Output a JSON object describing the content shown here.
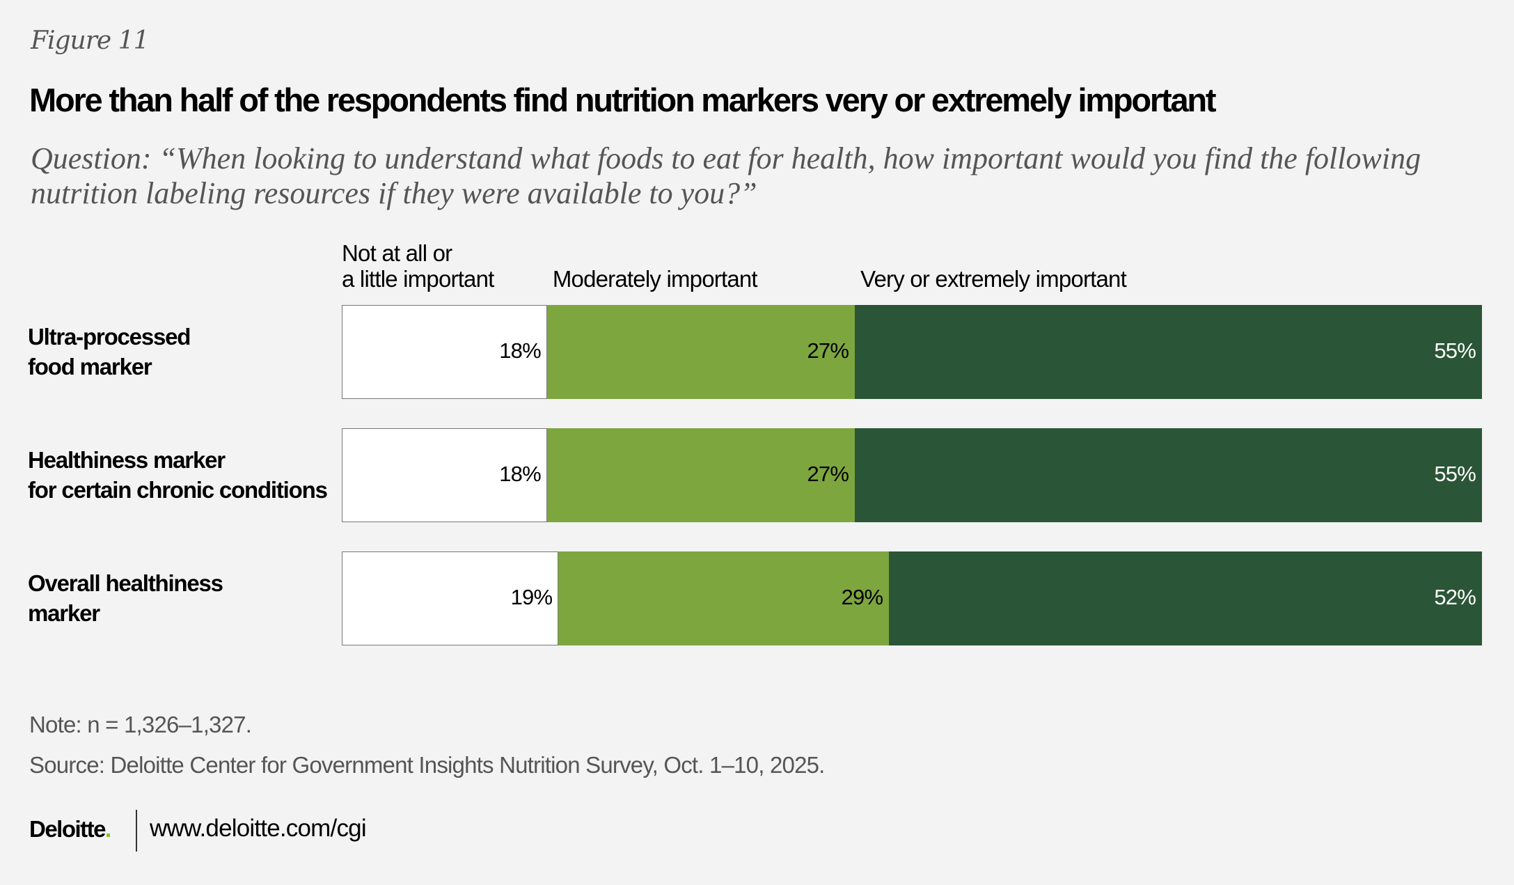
{
  "figure_label": "Figure 11",
  "title": "More than half of the respondents find nutrition markers very or extremely important",
  "subtitle_lines": [
    "Question: “When looking to understand what foods to eat for health, how important would you find the following",
    "nutrition labeling resources if they were available to you?”"
  ],
  "chart_data": {
    "type": "bar",
    "orientation": "horizontal",
    "stacked": true,
    "normalized_percent": true,
    "categories": [
      [
        "Ultra-processed",
        "food marker"
      ],
      [
        "Healthiness marker",
        "for certain chronic conditions"
      ],
      [
        "Overall healthiness",
        "marker"
      ]
    ],
    "series": [
      {
        "name": "Not at all or a little important",
        "name_lines": [
          "Not at all or",
          "a little important"
        ],
        "values": [
          18,
          18,
          19
        ],
        "labels": [
          "18%",
          "18%",
          "19%"
        ],
        "color": "#ffffff",
        "label_color": "#000000"
      },
      {
        "name": "Moderately important",
        "name_lines": [
          "",
          "Moderately important"
        ],
        "values": [
          27,
          27,
          29
        ],
        "labels": [
          "27%",
          "27%",
          "29%"
        ],
        "color": "#7ea63f",
        "label_color": "#000000"
      },
      {
        "name": "Very or extremely important",
        "name_lines": [
          "",
          "Very or extremely important"
        ],
        "values": [
          55,
          55,
          52
        ],
        "labels": [
          "55%",
          "55%",
          "52%"
        ],
        "color": "#2b5537",
        "label_color": "#ffffff"
      }
    ],
    "xlim": [
      0,
      100
    ],
    "legend_placement": "top",
    "grid": false
  },
  "note": "Note: n = 1,326–1,327.",
  "source": "Source: Deloitte Center for Government Insights Nutrition Survey, Oct. 1–10, 2025.",
  "footer": {
    "logo": "Deloitte",
    "logo_dot": ".",
    "url": "www.deloitte.com/cgi"
  }
}
